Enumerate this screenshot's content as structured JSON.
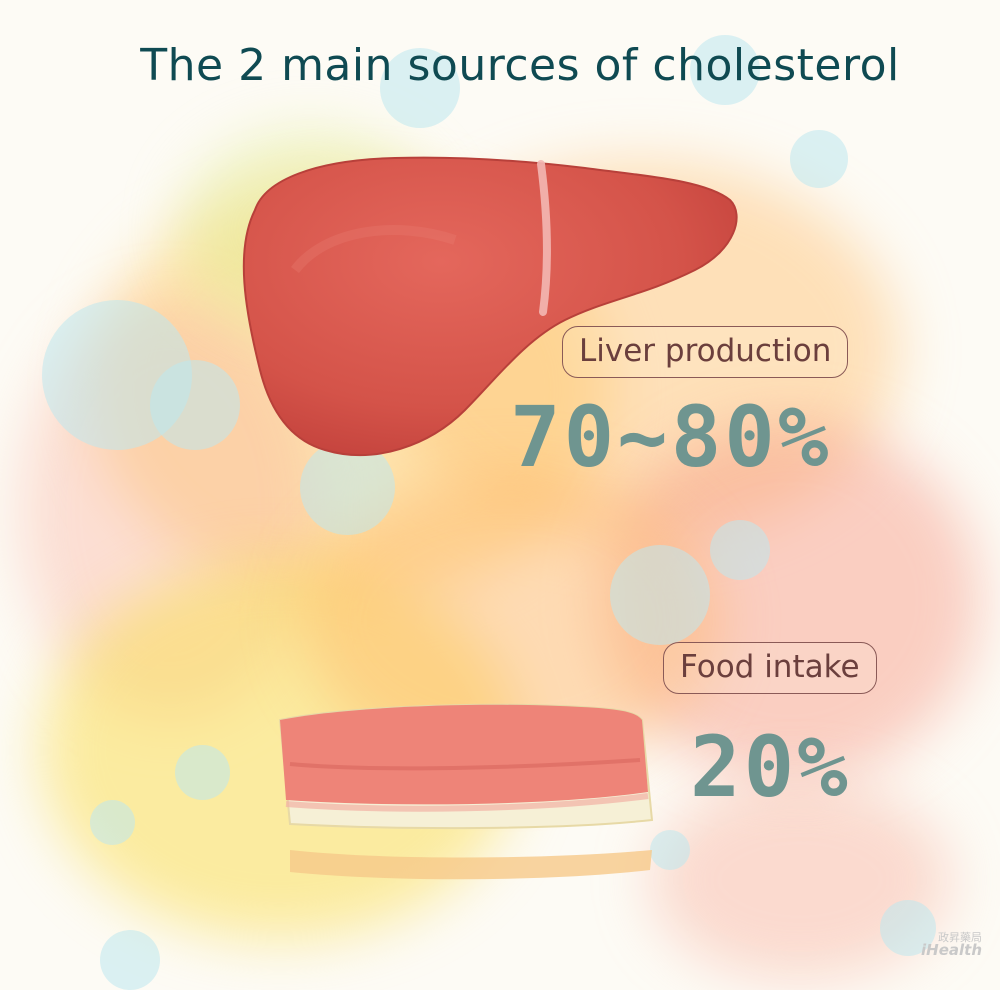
{
  "title": "The 2 main sources of cholesterol",
  "liver": {
    "label": "Liver production",
    "percent": "70~80%"
  },
  "food": {
    "label": "Food intake",
    "percent": "20%"
  },
  "logo": {
    "cn": "政昇藥局",
    "en": "iHealth"
  },
  "colors": {
    "title": "#0f4a52",
    "label_border": "#8a5a57",
    "label_text": "#6b3f3d",
    "percent_text": "#6f9590",
    "liver": "#d9584f",
    "cake_top": "#ef8a7e",
    "cake_cream": "#f7efd4"
  },
  "icons": [
    "liver-illustration",
    "cheesecake-illustration"
  ]
}
